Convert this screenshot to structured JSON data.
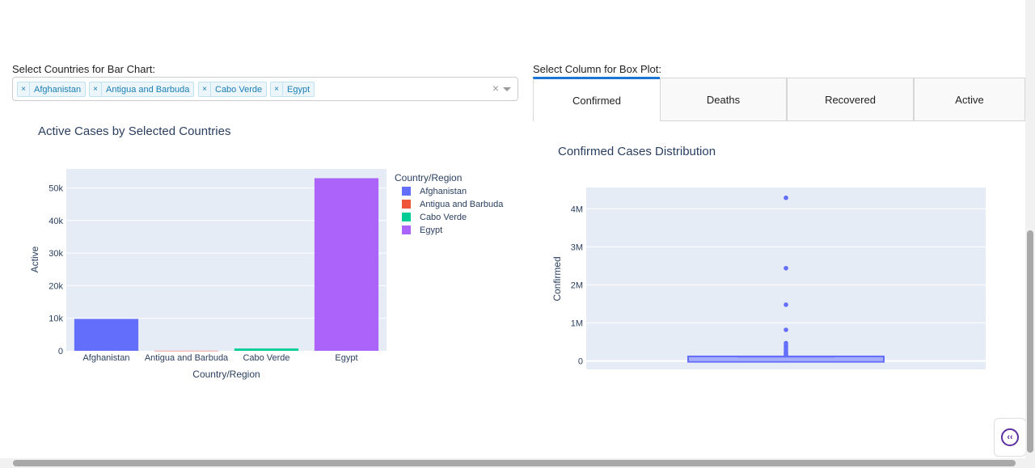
{
  "controls": {
    "bar_label": "Select Countries for Bar Chart:",
    "box_label": "Select Column for Box Plot:",
    "chips": [
      "Afghanistan",
      "Antigua and Barbuda",
      "Cabo Verde",
      "Egypt"
    ],
    "chip_remove": "×",
    "clear_all": "×"
  },
  "tabs": [
    "Confirmed",
    "Deaths",
    "Recovered",
    "Active"
  ],
  "active_tab": "Confirmed",
  "icons": {
    "collapse": "chevrons-left-icon",
    "dropdown": "chevron-down-icon"
  },
  "colors": {
    "plot_bg": "#e5ecf6",
    "afghanistan": "#636efa",
    "antigua": "#ef553b",
    "cabo_verde": "#00cc96",
    "egypt": "#ab63fa",
    "box": "#636efa",
    "tab_accent": "#1975d1"
  },
  "chart_data": [
    {
      "type": "bar",
      "title": "Active Cases by Selected Countries",
      "xlabel": "Country/Region",
      "ylabel": "Active",
      "categories": [
        "Afghanistan",
        "Antigua and Barbuda",
        "Cabo Verde",
        "Egypt"
      ],
      "values": [
        9800,
        20,
        700,
        53000
      ],
      "ylim": [
        0,
        55850
      ],
      "yticks": [
        0,
        10000,
        20000,
        30000,
        40000,
        50000
      ],
      "ytick_labels": [
        "0",
        "10k",
        "20k",
        "30k",
        "40k",
        "50k"
      ],
      "legend_title": "Country/Region",
      "legend_position": "right",
      "grid": true
    },
    {
      "type": "box",
      "title": "Confirmed Cases Distribution",
      "ylabel": "Confirmed",
      "ylim": [
        -220000,
        4560000
      ],
      "yticks": [
        0,
        1000000,
        2000000,
        3000000,
        4000000
      ],
      "ytick_labels": [
        "0",
        "1M",
        "2M",
        "3M",
        "4M"
      ],
      "box": {
        "q1": 0,
        "median": 5000,
        "q3": 100000,
        "lower_fence": 0,
        "upper_fence": 50000
      },
      "outliers": [
        4290000,
        2440000,
        1480000,
        820000,
        470000,
        410000,
        360000,
        300000,
        250000,
        210000,
        180000,
        150000
      ],
      "grid": true
    }
  ]
}
